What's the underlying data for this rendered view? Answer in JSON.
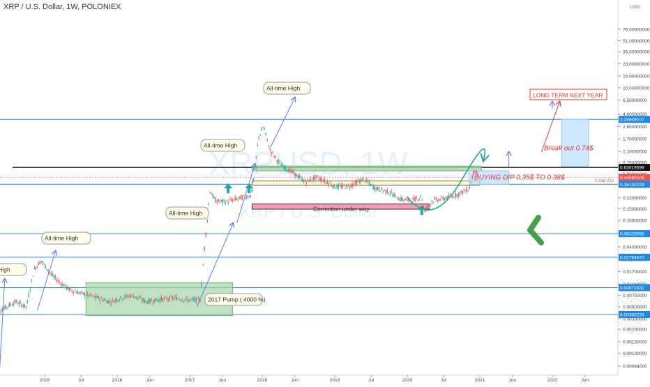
{
  "header": {
    "title": "XRP / U.S. Dollar, 1W, POLONIEX"
  },
  "watermark": {
    "symbol": "XRPUSD, 1W",
    "name": "XRP / U.S. Dollar"
  },
  "colors": {
    "candle_up": "#26a69a",
    "candle_down": "#ef5350",
    "hline": "#1e88e5",
    "black_line": "#000000",
    "green_box": "#a5d6a7",
    "yellow_box": "#fff9c4",
    "pink_box": "#f48fb1",
    "blue_box": "#bbdefb",
    "arrow_green": "#26a69a",
    "arrow_red": "#e53935",
    "arrow_blue": "#5c7cfa",
    "big_arrow": "#43a047"
  },
  "chart_data": {
    "type": "candlestick",
    "title": "XRP / U.S. Dollar, 1W, POLONIEX",
    "x_ticks": [
      "2015",
      "Jul",
      "2016",
      "Jun",
      "2017",
      "Jun",
      "2018",
      "Jun",
      "2019",
      "Jul",
      "2020",
      "Jul",
      "2021",
      "Jun",
      "2022",
      "Jun"
    ],
    "y_scale": "log",
    "y_ticks": [
      "76.00000000",
      "51.00000000",
      "35.00000000",
      "23.00000000",
      "15.00000000",
      "10.00000000",
      "6.50000000",
      "4.00000000",
      "2.60000000",
      "1.70000000",
      "1.10000000",
      "0.75000000",
      "0.50000000",
      "0.33000000",
      "0.22000000",
      "0.15000000",
      "0.10000000",
      "0.06500000",
      "0.04000000",
      "0.02600000",
      "0.01700000",
      "0.01100000",
      "0.00750000",
      "0.00500000",
      "0.00330000",
      "0.00230000",
      "0.00150000",
      "0.00100000",
      "0.00064000"
    ],
    "y_unit": "USD",
    "price_labels": [
      {
        "text": "3.33649107",
        "value": 3.33649107
      },
      {
        "text": "0.63019599",
        "value": 0.63019599
      },
      {
        "text": "0.44580105",
        "value": 0.44580105
      },
      {
        "text": "0.35130229",
        "value": 0.35130229
      },
      {
        "text": "0.06328956",
        "value": 0.06328956
      },
      {
        "text": "0.02794670",
        "value": 0.0279467
      },
      {
        "text": "0.00972831",
        "value": 0.00972831
      },
      {
        "text": "0.00383233",
        "value": 0.00383233
      }
    ],
    "current_price_tag": "0.3...",
    "countdown_tag": "4d 21h",
    "annotations": [
      {
        "text": "All-time High",
        "id": "ath-2018"
      },
      {
        "text": "All-time High",
        "id": "ath-2017-may"
      },
      {
        "text": "All-time High",
        "id": "ath-2017-apr"
      },
      {
        "text": "All-time High",
        "id": "ath-2014"
      },
      {
        "text": "e High",
        "id": "ath-2014-cut"
      },
      {
        "text": "2017 Pump ( 4000 %)",
        "id": "pump"
      },
      {
        "text": "Correction under way",
        "id": "correction"
      },
      {
        "text": "LONG TERM NEXT YEAR",
        "id": "long-term"
      },
      {
        "text": "Break out 0.74$",
        "id": "breakout"
      },
      {
        "text": "BUYING DIP 0.35$ TO 0.38$",
        "id": "buying-dip"
      }
    ]
  }
}
